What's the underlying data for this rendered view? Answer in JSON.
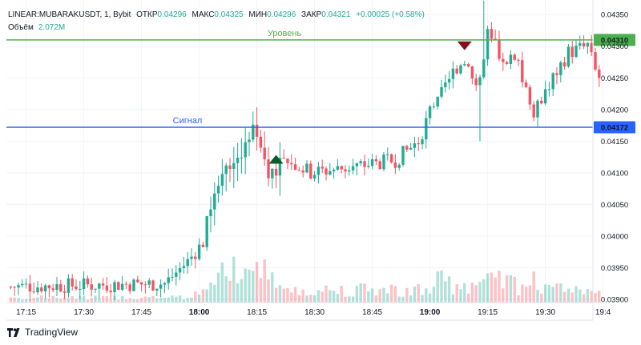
{
  "header": {
    "symbol": "LINEAR:MUBARAKUSDT, 1, Bybit",
    "open_label": "ОТКР",
    "open": "0.04296",
    "high_label": "МАКС",
    "high": "0.04325",
    "low_label": "МИН",
    "low": "0.04296",
    "close_label": "ЗАКР",
    "close": "0.04321",
    "change": "+0.00025 (+0.58%)",
    "volume_label": "Объём",
    "volume": "2.072M"
  },
  "brand": {
    "name": "TradingView"
  },
  "colors": {
    "up": "#22ab94",
    "down": "#f7525f",
    "level_line": "#4caf50",
    "signal_line": "#2962ff",
    "buy_marker": "#0b5d2a",
    "sell_marker": "#880e1e"
  },
  "chart_data": {
    "type": "candlestick",
    "y_ticks": [
      "0.04350",
      "0.04300",
      "0.04250",
      "0.04200",
      "0.04150",
      "0.04100",
      "0.04050",
      "0.04000",
      "0.03950",
      "0.03900"
    ],
    "ylim": [
      0.03895,
      0.04373
    ],
    "x_ticks": [
      {
        "label": "17:15",
        "t": 4
      },
      {
        "label": "17:30",
        "t": 19
      },
      {
        "label": "17:45",
        "t": 34
      },
      {
        "label": "18:00",
        "t": 49,
        "bold": true
      },
      {
        "label": "18:15",
        "t": 64
      },
      {
        "label": "18:30",
        "t": 79
      },
      {
        "label": "18:45",
        "t": 94
      },
      {
        "label": "19:00",
        "t": 109,
        "bold": true
      },
      {
        "label": "19:15",
        "t": 124
      },
      {
        "label": "19:30",
        "t": 139
      },
      {
        "label": "19:4",
        "t": 154
      }
    ],
    "hlines": [
      {
        "name": "Уровень",
        "value": 0.0431,
        "label": "0.04310",
        "color": "#4caf50"
      },
      {
        "name": "Сигнал",
        "value": 0.04172,
        "label": "0.04172",
        "color": "#2962ff"
      }
    ],
    "markers": [
      {
        "type": "buy",
        "t": 69,
        "price": 0.04122
      },
      {
        "type": "sell",
        "t": 118,
        "price": 0.043
      }
    ]
  }
}
